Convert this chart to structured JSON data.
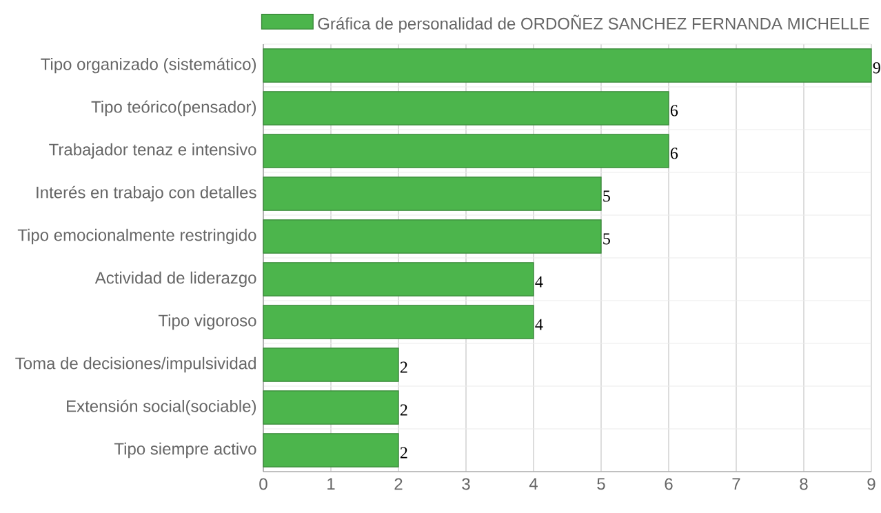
{
  "chart_data": {
    "type": "bar",
    "orientation": "horizontal",
    "categories": [
      "Tipo organizado (sistemático)",
      "Tipo teórico(pensador)",
      "Trabajador tenaz e intensivo",
      "Interés en trabajo con detalles",
      "Tipo emocionalmente restringido",
      "Actividad de liderazgo",
      "Tipo vigoroso",
      "Toma de decisiones/impulsividad",
      "Extensión social(sociable)",
      "Tipo siempre activo"
    ],
    "series": [
      {
        "name": "Gráfica de personalidad de ORDOÑEZ SANCHEZ FERNANDA MICHELLE",
        "color": "#4cb54c",
        "values": [
          9,
          6,
          6,
          5,
          5,
          4,
          4,
          2,
          2,
          2
        ]
      }
    ],
    "xlim": [
      0,
      9
    ],
    "xticks": [
      0,
      1,
      2,
      3,
      4,
      5,
      6,
      7,
      8,
      9
    ],
    "grid": true,
    "legend": "top",
    "data_labels": true
  }
}
